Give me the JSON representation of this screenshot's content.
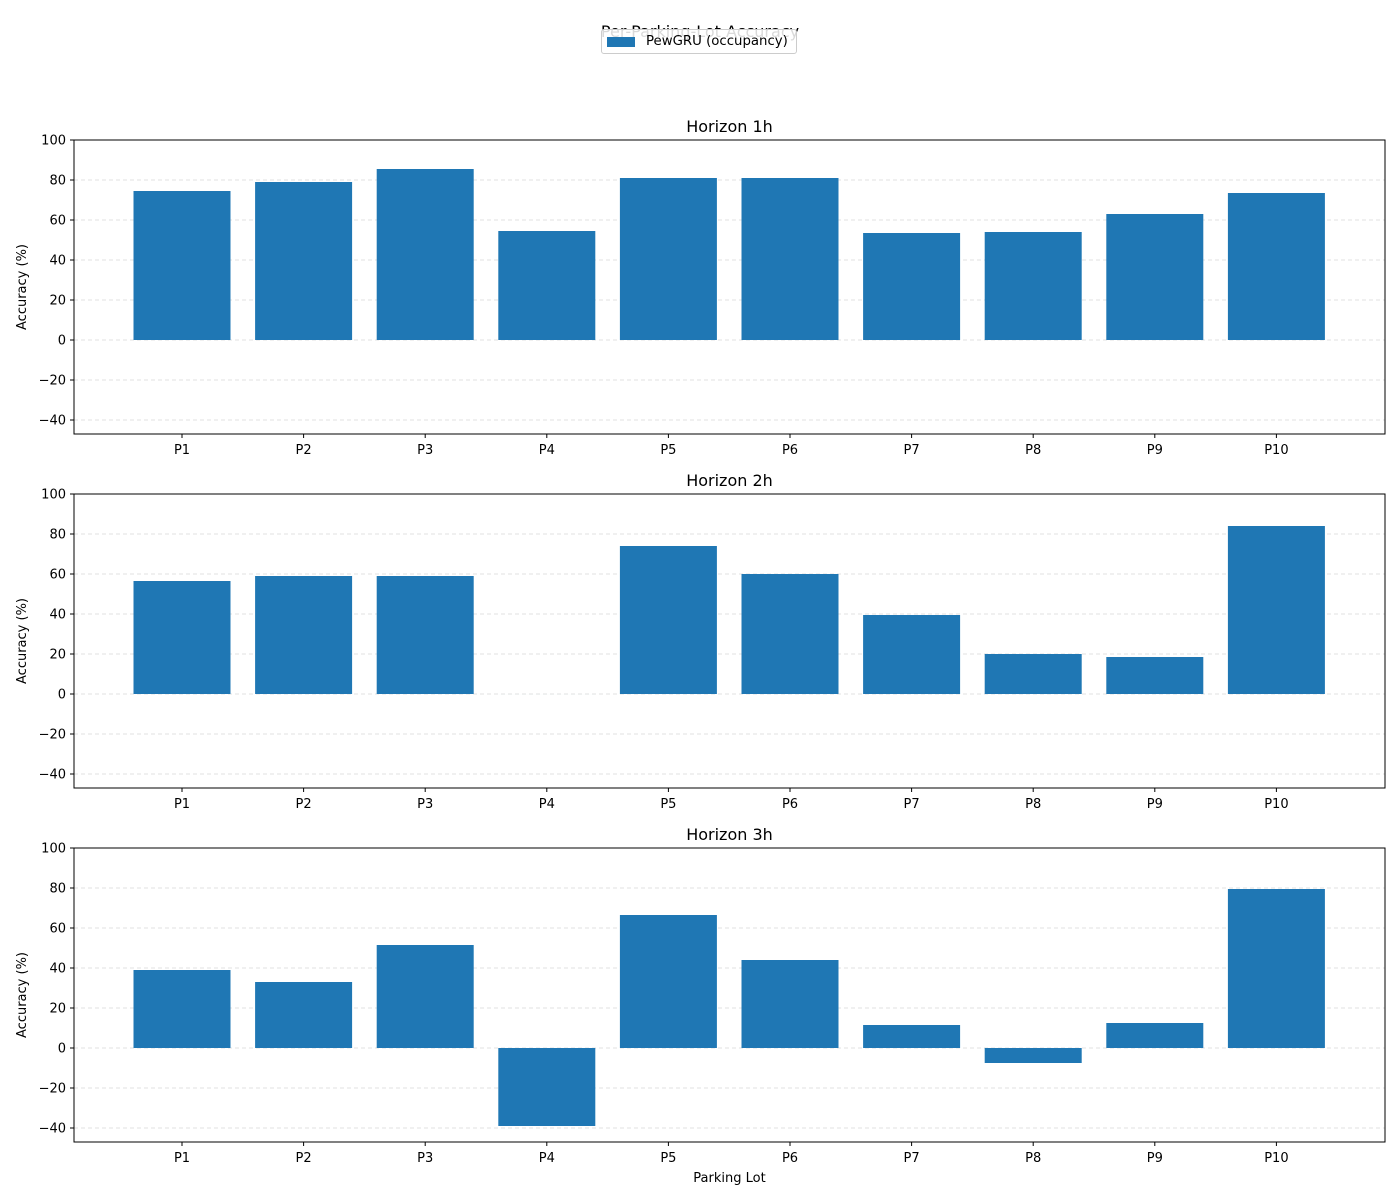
{
  "chart_data": {
    "type": "bar",
    "title": "Per-Parking-Lot Accuracy",
    "legend": {
      "entries": [
        "PewGRU (occupancy)"
      ],
      "placement": "top-center"
    },
    "bar_color": "#1f77b4",
    "xlabel": "Parking Lot",
    "ylabel": "Accuracy (%)",
    "ylim": [
      -47,
      100
    ],
    "yticks": [
      -40,
      -20,
      0,
      20,
      40,
      60,
      80,
      100
    ],
    "grid": "y-dashed",
    "categories": [
      "P1",
      "P2",
      "P3",
      "P4",
      "P5",
      "P6",
      "P7",
      "P8",
      "P9",
      "P10"
    ],
    "panels": [
      {
        "title": "Horizon 1h",
        "series": [
          {
            "name": "PewGRU (occupancy)",
            "values": [
              74.5,
              79,
              85.5,
              54.5,
              81,
              81,
              53.5,
              54,
              63,
              73.5
            ]
          }
        ]
      },
      {
        "title": "Horizon 2h",
        "series": [
          {
            "name": "PewGRU (occupancy)",
            "values": [
              56.5,
              59,
              59,
              0,
              74,
              60,
              39.5,
              20,
              18.5,
              84
            ]
          }
        ]
      },
      {
        "title": "Horizon 3h",
        "series": [
          {
            "name": "PewGRU (occupancy)",
            "values": [
              39,
              33,
              51.5,
              -39,
              66.5,
              44,
              11.5,
              -7.5,
              12.5,
              79.5
            ]
          }
        ]
      }
    ]
  }
}
